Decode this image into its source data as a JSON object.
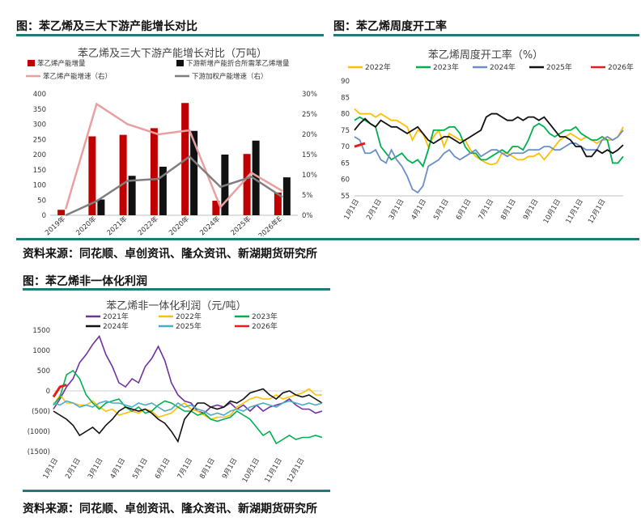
{
  "captions": {
    "c1": "图：苯乙烯及三大下游产能增长对比",
    "c2": "图：苯乙烯周度开工率",
    "c3": "图：苯乙烯非一体化利润"
  },
  "sources": {
    "s1": "资料来源：同花顺、卓创资讯、隆众资讯、新湖期货研究所",
    "s2": "资料来源：同花顺、卓创资讯、隆众资讯、新湖期货研究所"
  },
  "colors": {
    "rule": "#1f7a78"
  },
  "chart_data": [
    {
      "type": "bar",
      "title": "苯乙烯及三大下游产能增长对比（万吨）",
      "categories": [
        "2019年",
        "2020年",
        "2021年",
        "2022年",
        "2020年",
        "2024年",
        "2025年",
        "2026年E"
      ],
      "ylim": [
        0,
        400
      ],
      "yticks": [
        0,
        50,
        100,
        150,
        200,
        250,
        300,
        350,
        400
      ],
      "y2lim": [
        0,
        30
      ],
      "y2ticks": [
        "0%",
        "5%",
        "10%",
        "15%",
        "20%",
        "25%",
        "30%"
      ],
      "series": [
        {
          "name": "苯乙烯产能增量",
          "kind": "bar",
          "axis": "left",
          "color": "#c00000",
          "values": [
            18,
            260,
            265,
            287,
            370,
            48,
            202,
            75
          ]
        },
        {
          "name": "下游新增产能折合所需苯乙烯增量",
          "kind": "bar",
          "axis": "left",
          "color": "#111111",
          "values": [
            0,
            52,
            130,
            160,
            278,
            200,
            246,
            125
          ]
        },
        {
          "name": "苯乙烯产能增速（右）",
          "kind": "line",
          "axis": "right",
          "color": "#e8a0a0",
          "values": [
            1.5,
            27.5,
            22.5,
            20,
            21,
            2,
            10.5,
            6
          ]
        },
        {
          "name": "下游加权产能增速（右）",
          "kind": "line",
          "axis": "right",
          "color": "#7f7f7f",
          "values": [
            0,
            3.5,
            8.5,
            9,
            14.5,
            7,
            9.5,
            4.5
          ]
        }
      ]
    },
    {
      "type": "line",
      "title": "苯乙烯周度开工率（%）",
      "ylim": [
        55,
        90
      ],
      "yticks": [
        55,
        60,
        65,
        70,
        75,
        80,
        85,
        90
      ],
      "xlabels": [
        "1月1日",
        "2月1日",
        "3月1日",
        "4月1日",
        "5月1日",
        "6月1日",
        "7月1日",
        "8月1日",
        "9月1日",
        "10月1日",
        "11月1日",
        "12月1日"
      ],
      "weeks": 52,
      "series": [
        {
          "name": "2022年",
          "color": "#ffc000",
          "values": [
            81.5,
            80,
            80,
            80,
            79,
            80,
            79,
            78,
            78,
            77,
            76,
            72,
            75,
            74,
            70,
            73,
            75,
            70,
            74,
            73,
            72,
            72,
            69,
            67,
            66,
            65,
            64.5,
            65,
            68,
            68,
            67,
            66,
            66,
            67,
            67,
            68,
            66,
            68,
            70,
            72,
            73,
            74,
            73,
            72,
            73,
            72,
            71,
            72,
            72,
            72,
            73,
            76
          ]
        },
        {
          "name": "2023年",
          "color": "#00b050",
          "values": [
            78,
            79,
            78,
            77,
            76,
            70,
            68,
            66,
            67,
            68,
            66,
            65,
            66,
            64,
            69,
            75,
            75,
            75,
            76,
            76,
            74,
            70,
            68,
            68,
            66,
            66,
            67,
            68,
            69,
            68,
            70,
            70,
            69,
            72,
            76,
            77,
            76,
            74,
            73,
            74,
            75,
            75,
            76,
            74,
            73,
            72,
            72,
            73,
            72,
            65,
            65,
            67
          ]
        },
        {
          "name": "2024年",
          "color": "#6a8fc8",
          "values": [
            73,
            72,
            68,
            68,
            69,
            66,
            65,
            69,
            66,
            64,
            61,
            57,
            56,
            58,
            64,
            65,
            66,
            68,
            69,
            67,
            66,
            67,
            68,
            69,
            67,
            68,
            69,
            69,
            68,
            67,
            68,
            68,
            68,
            69,
            69,
            69,
            70,
            70,
            69,
            69,
            70,
            71,
            71,
            70,
            69,
            69,
            69,
            72,
            73,
            72,
            73,
            75
          ]
        },
        {
          "name": "2025年",
          "color": "#111111",
          "values": [
            75,
            77,
            78.5,
            77,
            76,
            78,
            77,
            76,
            76,
            75,
            74,
            75,
            76,
            74,
            72,
            71,
            72,
            73,
            73,
            72,
            71,
            72,
            73,
            74,
            75,
            79,
            80,
            80,
            79,
            78,
            78,
            79,
            78,
            79,
            79,
            78,
            79,
            77,
            75,
            73,
            73,
            72,
            70,
            70,
            67,
            67,
            69,
            68,
            69,
            68,
            69,
            70.5
          ]
        },
        {
          "name": "2026年",
          "color": "#e02020",
          "values": [
            70,
            70.5,
            71
          ]
        }
      ]
    },
    {
      "type": "line",
      "title": "苯乙烯非一体化利润（元/吨）",
      "ylim": [
        -1500,
        1500
      ],
      "yticks": [
        "1500",
        "1000",
        "500",
        "0",
        "(500)",
        "(1000)",
        "(1500)"
      ],
      "xlabels": [
        "1月1日",
        "2月1日",
        "3月1日",
        "4月1日",
        "5月1日",
        "6月1日",
        "7月1日",
        "8月1日",
        "9月1日",
        "10月1日",
        "11月1日",
        "12月1日"
      ],
      "series": [
        {
          "name": "2021年",
          "color": "#7030a0",
          "values": [
            -450,
            -200,
            100,
            300,
            700,
            900,
            1150,
            1350,
            900,
            600,
            200,
            100,
            300,
            200,
            600,
            800,
            1100,
            750,
            200,
            -100,
            -250,
            -300,
            -500,
            -550,
            -400,
            -350,
            -400,
            -300,
            -450,
            -350,
            -500,
            -350,
            -500,
            -400,
            -350,
            -300,
            -200,
            -350,
            -450,
            -450,
            -550,
            -500
          ]
        },
        {
          "name": "2022年",
          "color": "#ffc000",
          "values": [
            -350,
            -100,
            -300,
            -300,
            -350,
            -350,
            -250,
            -400,
            -500,
            -450,
            -600,
            -550,
            -500,
            -550,
            -450,
            -500,
            -650,
            -600,
            -550,
            -400,
            -300,
            -450,
            -500,
            -600,
            -700,
            -650,
            -650,
            -600,
            -400,
            -300,
            -200,
            -150,
            -200,
            -200,
            -100,
            -200,
            -150,
            -100,
            -50,
            50,
            -100,
            -100
          ]
        },
        {
          "name": "2023年",
          "color": "#00b050",
          "values": [
            -350,
            -150,
            400,
            500,
            300,
            -100,
            -300,
            -450,
            -300,
            -250,
            -200,
            -400,
            -500,
            -400,
            -550,
            -500,
            -350,
            -250,
            -300,
            -400,
            -500,
            -500,
            -600,
            -550,
            -700,
            -750,
            -700,
            -650,
            -500,
            -600,
            -700,
            -900,
            -1100,
            -1000,
            -1300,
            -1200,
            -1100,
            -1200,
            -1150,
            -1150,
            -1100,
            -1150
          ]
        },
        {
          "name": "2024年",
          "color": "#111111",
          "values": [
            -500,
            -600,
            -700,
            -850,
            -1100,
            -1000,
            -900,
            -1050,
            -850,
            -700,
            -500,
            -400,
            -450,
            -500,
            -450,
            -550,
            -700,
            -800,
            -1000,
            -1250,
            -700,
            -500,
            -300,
            -300,
            -400,
            -450,
            -400,
            -250,
            -300,
            -200,
            -50,
            0,
            50,
            -100,
            -200,
            -50,
            0,
            -100,
            -150,
            -100,
            -200,
            -300
          ]
        },
        {
          "name": "2025年",
          "color": "#4bacc6",
          "values": [
            -300,
            -350,
            -250,
            -300,
            -400,
            -350,
            -400,
            -300,
            -250,
            -300,
            -300,
            -350,
            -400,
            -300,
            -350,
            -300,
            -400,
            -500,
            -450,
            -300,
            -400,
            -350,
            -450,
            -500,
            -600,
            -550,
            -600,
            -500,
            -450,
            -500,
            -400,
            -350,
            -300,
            -350,
            -400,
            -300,
            -250,
            -300,
            -350,
            -300,
            -350,
            -300
          ]
        },
        {
          "name": "2026年",
          "color": "#e02020",
          "values": [
            -150,
            100,
            150
          ]
        }
      ]
    }
  ]
}
